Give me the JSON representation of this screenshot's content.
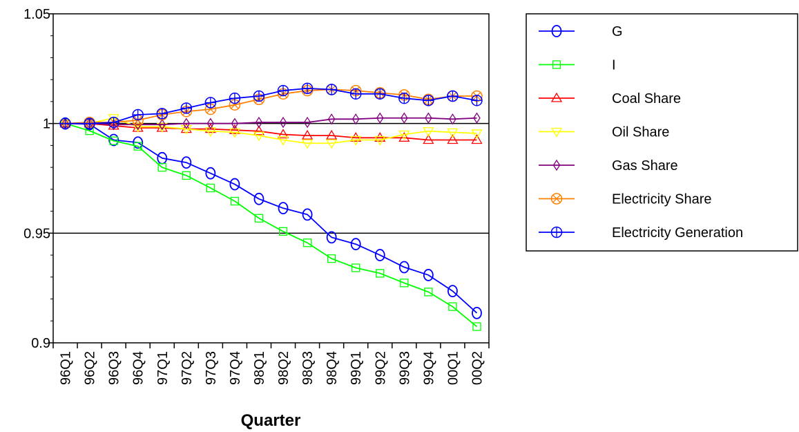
{
  "chart_data": {
    "type": "line",
    "title": "",
    "xlabel": "Quarter",
    "ylabel": "",
    "ylim": [
      0.9,
      1.05
    ],
    "yticks": [
      "0.9",
      "0.95",
      "1",
      "1.05"
    ],
    "ytick_values": [
      0.9,
      0.95,
      1.0,
      1.05
    ],
    "reference_lines": [
      1.0,
      0.95
    ],
    "grid": false,
    "legend_position": "right",
    "categories": [
      "96Q1",
      "96Q2",
      "96Q3",
      "96Q4",
      "97Q1",
      "97Q2",
      "97Q3",
      "97Q4",
      "98Q1",
      "98Q2",
      "98Q3",
      "98Q4",
      "99Q1",
      "99Q2",
      "99Q3",
      "99Q4",
      "00Q1",
      "00Q2"
    ],
    "series": [
      {
        "name": "G",
        "color": "#0000ff",
        "marker": "circle",
        "values": [
          1.0,
          0.9997,
          0.9925,
          0.9913,
          0.9842,
          0.9822,
          0.9773,
          0.9723,
          0.9656,
          0.9614,
          0.9585,
          0.9481,
          0.945,
          0.94,
          0.9345,
          0.9309,
          0.9236,
          0.9136
        ]
      },
      {
        "name": "I",
        "color": "#00ff00",
        "marker": "square",
        "values": [
          1.0,
          0.9967,
          0.9921,
          0.9896,
          0.98,
          0.9763,
          0.9706,
          0.9646,
          0.9568,
          0.9508,
          0.9456,
          0.9384,
          0.9342,
          0.9317,
          0.9273,
          0.9232,
          0.9165,
          0.9074
        ]
      },
      {
        "name": "Coal Share",
        "color": "#ff0000",
        "marker": "triangle-up",
        "values": [
          1.0,
          1.0,
          0.999,
          0.998,
          0.998,
          0.9975,
          0.9975,
          0.997,
          0.9965,
          0.995,
          0.9945,
          0.9945,
          0.9935,
          0.9935,
          0.9935,
          0.9925,
          0.9925,
          0.9925
        ]
      },
      {
        "name": "Oil Share",
        "color": "#ffff00",
        "marker": "triangle-down",
        "values": [
          1.0,
          1.0,
          1.0025,
          0.9985,
          0.9985,
          0.9975,
          0.9965,
          0.996,
          0.9945,
          0.9925,
          0.991,
          0.991,
          0.9925,
          0.9925,
          0.995,
          0.9965,
          0.996,
          0.9955
        ]
      },
      {
        "name": "Gas Share",
        "color": "#800080",
        "marker": "diamond",
        "values": [
          1.0,
          1.0,
          0.9995,
          0.9995,
          0.9995,
          1.0,
          1.0,
          1.0,
          1.0005,
          1.0005,
          1.0005,
          1.002,
          1.002,
          1.0025,
          1.0025,
          1.0025,
          1.002,
          1.0025
        ]
      },
      {
        "name": "Electricity Share",
        "color": "#ff8000",
        "marker": "circle-x",
        "values": [
          1.0,
          1.0005,
          1.0005,
          1.0015,
          1.004,
          1.0055,
          1.0065,
          1.0085,
          1.011,
          1.0135,
          1.015,
          1.0155,
          1.015,
          1.014,
          1.013,
          1.011,
          1.0125,
          1.0125
        ]
      },
      {
        "name": "Electricity Generation",
        "color": "#0000ff",
        "marker": "circle-plus",
        "values": [
          1.0,
          1.0,
          1.0005,
          1.004,
          1.0045,
          1.007,
          1.0095,
          1.0115,
          1.0125,
          1.015,
          1.016,
          1.0155,
          1.0135,
          1.0135,
          1.0115,
          1.0105,
          1.0125,
          1.0105
        ]
      }
    ]
  }
}
